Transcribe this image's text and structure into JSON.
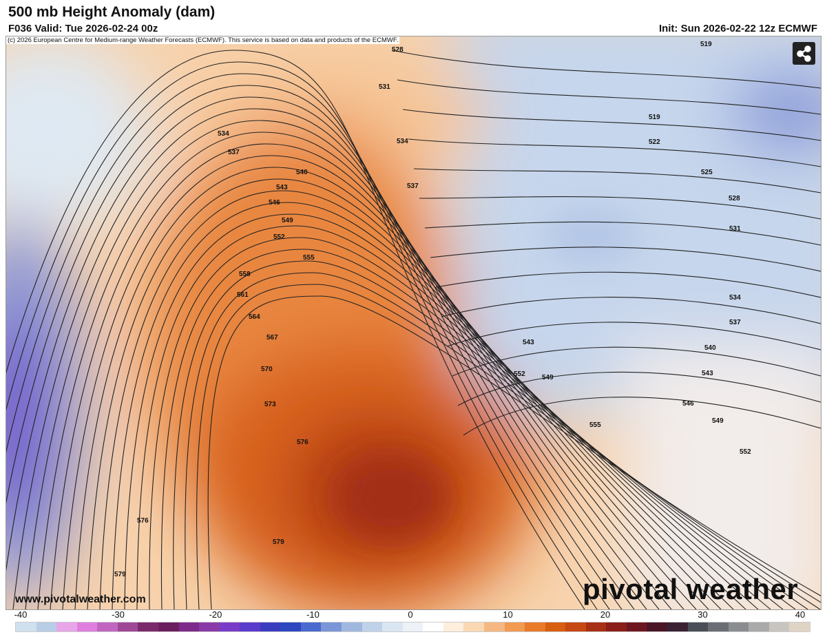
{
  "header": {
    "title": "500 mb Height Anomaly (dam)",
    "valid": "F036 Valid: Tue 2026-02-24 00z",
    "init": "Init: Sun 2026-02-22 12z ECMWF"
  },
  "map": {
    "copyright": "(c) 2026 European Centre for Medium-range Weather Forecasts (ECMWF). This service is based on data and products of the ECMWF.",
    "website": "www.pivotalweather.com",
    "brand": "pivotal weather",
    "share_icon": "share-icon",
    "contour_labels": [
      "528",
      "531",
      "534",
      "537",
      "540",
      "543",
      "546",
      "549",
      "552",
      "555",
      "558",
      "561",
      "564",
      "567",
      "570",
      "573",
      "576",
      "576",
      "579",
      "579",
      "519",
      "519",
      "522",
      "525",
      "528",
      "531",
      "534",
      "537",
      "540",
      "543",
      "546",
      "549",
      "552",
      "534",
      "537",
      "543",
      "549",
      "552",
      "555"
    ]
  },
  "colorbar": {
    "ticks": [
      "-40",
      "-30",
      "-20",
      "-10",
      "0",
      "10",
      "20",
      "30",
      "40"
    ],
    "range": [
      -40,
      40
    ],
    "colors": [
      "#cfe0ee",
      "#b8cde6",
      "#e8a6e8",
      "#e07ee0",
      "#c066c0",
      "#a04898",
      "#7a2a6a",
      "#6a1e5e",
      "#7e2a8a",
      "#8a3aa8",
      "#7a3cc8",
      "#5a3ccc",
      "#3a3cc0",
      "#2e46c0",
      "#4a6ad0",
      "#7a96d8",
      "#a0b8e0",
      "#c0d2ea",
      "#dae6f2",
      "#ecf2f8",
      "#ffffff",
      "#fdeede",
      "#fbd8b4",
      "#f6b882",
      "#f09a52",
      "#e87a2a",
      "#d85e10",
      "#c64812",
      "#a83014",
      "#8a1e18",
      "#6e1620",
      "#4a1626",
      "#3a2232",
      "#4a4e56",
      "#6a6e74",
      "#8a8c90",
      "#aaaaaa",
      "#c8c4c0",
      "#e0d4c4"
    ]
  }
}
